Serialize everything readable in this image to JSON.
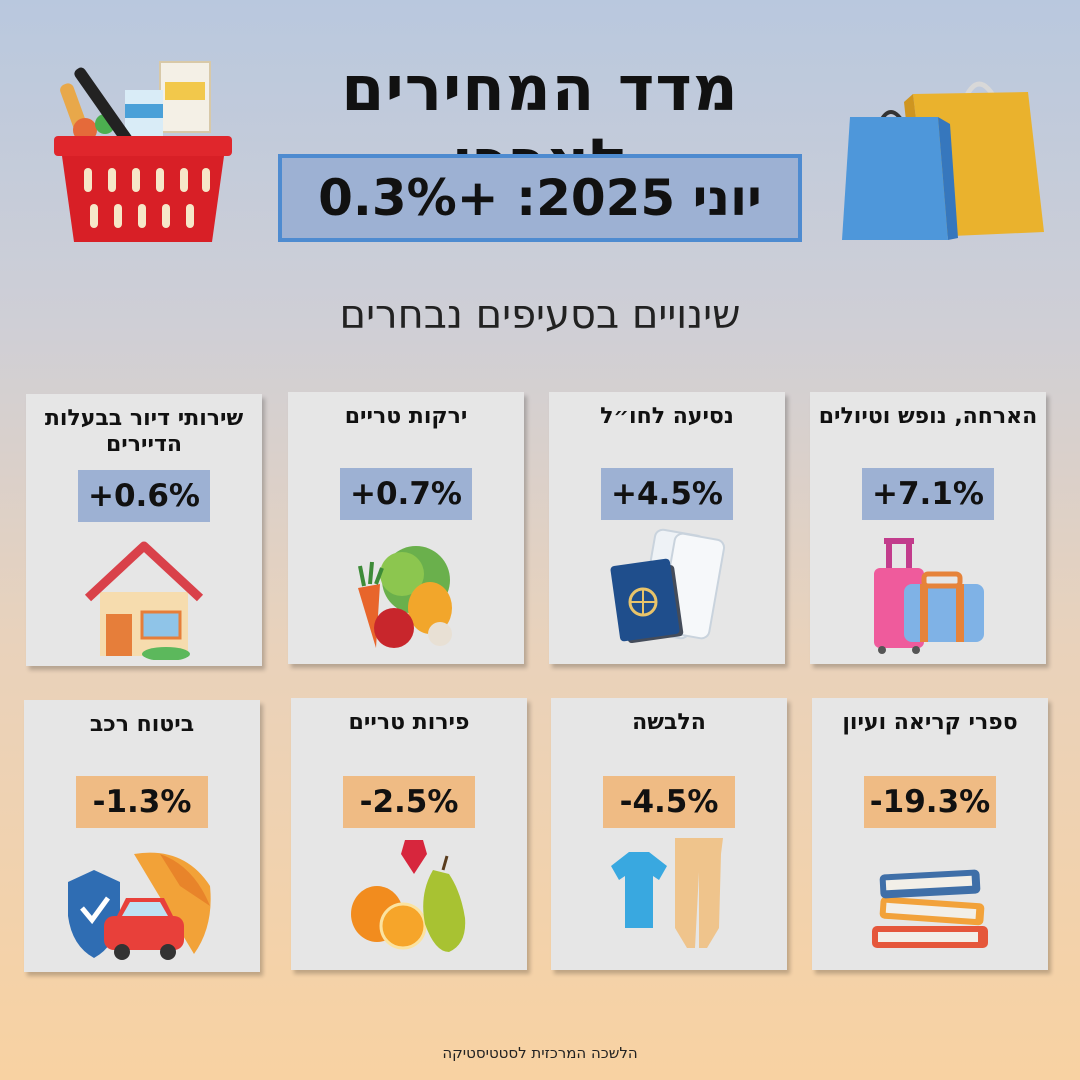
{
  "header": {
    "title": "מדד המחירים לצרכן",
    "headline": "יוני 2025: +0.3%",
    "subtitle": "שינויים בסעיפים נבחרים"
  },
  "colors": {
    "increase_box": "#9db1d3",
    "decrease_box": "#efbb84",
    "headline_border": "#4e8bd0"
  },
  "cards": [
    {
      "label": "הארחה, נופש וטיולים",
      "value": "+7.1%",
      "icon": "luggage-icon"
    },
    {
      "label": "נסיעה לחו״ל",
      "value": "+4.5%",
      "icon": "passport-tickets-icon"
    },
    {
      "label": "ירקות טריים",
      "value": "+0.7%",
      "icon": "vegetables-icon"
    },
    {
      "label": "שירותי דיור בבעלות הדיירים",
      "value": "+0.6%",
      "icon": "house-icon"
    },
    {
      "label": "ספרי קריאה ועיון",
      "value": "-19.3%",
      "icon": "books-icon"
    },
    {
      "label": "הלבשה",
      "value": "-4.5%",
      "icon": "clothing-icon"
    },
    {
      "label": "פירות טריים",
      "value": "-2.5%",
      "icon": "fruits-icon"
    },
    {
      "label": "ביטוח רכב",
      "value": "-1.3%",
      "icon": "car-insurance-icon"
    }
  ],
  "footer": {
    "source": "הלשכה המרכזית לסטטיסטיקה"
  }
}
